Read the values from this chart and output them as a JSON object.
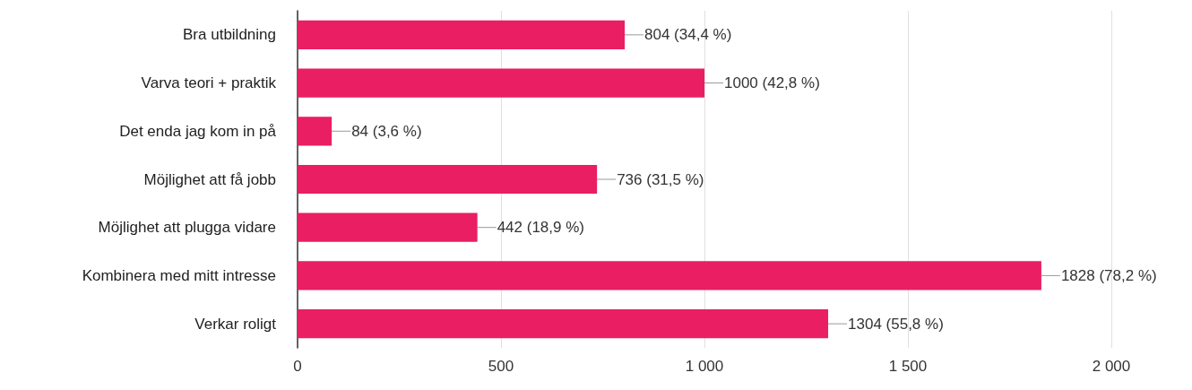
{
  "chart_data": {
    "type": "bar",
    "orientation": "horizontal",
    "categories": [
      "Bra utbildning",
      "Varva teori + praktik",
      "Det enda jag kom in på",
      "Möjlighet att få jobb",
      "Möjlighet att plugga vidare",
      "Kombinera med mitt intresse",
      "Verkar roligt"
    ],
    "values": [
      804,
      1000,
      84,
      736,
      442,
      1828,
      1304
    ],
    "value_labels": [
      "804 (34,4 %)",
      "1000 (42,8 %)",
      "84 (3,6 %)",
      "736 (31,5 %)",
      "442 (18,9 %)",
      "1828 (78,2 %)",
      "1304 (55,8 %)"
    ],
    "color": "#e91e63",
    "xlim": [
      0,
      2000
    ],
    "xticks": [
      0,
      500,
      {
        "value": 1000,
        "label": "1 000"
      },
      {
        "value": 1500,
        "label": "1 500"
      },
      {
        "value": 2000,
        "label": "2 000"
      }
    ],
    "grid": "x"
  }
}
